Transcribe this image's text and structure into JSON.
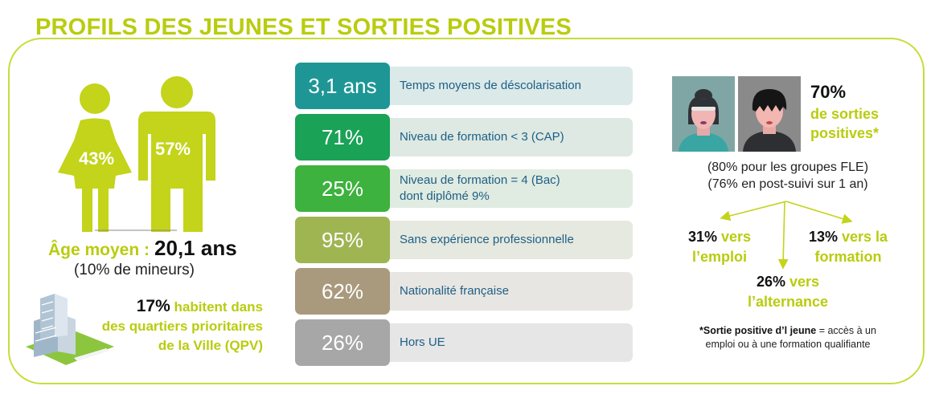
{
  "title": "PROFILS DES JEUNES ET SORTIES POSITIVES",
  "gender": {
    "women_pct": "43%",
    "men_pct": "57%"
  },
  "age": {
    "label": "Âge moyen :",
    "value": "20,1 ans",
    "minors": "(10% de mineurs)"
  },
  "qpv": {
    "pct": "17%",
    "line1": "habitent dans",
    "line2": "des quartiers prioritaires",
    "line3": "de la Ville (QPV)"
  },
  "stats": [
    {
      "value": "3,1 ans",
      "label": "Temps moyens de déscolarisation",
      "label2": "",
      "color": "#1e9696",
      "bg": "#dbe9e9"
    },
    {
      "value": "71%",
      "label": "Niveau de formation < 3 (CAP)",
      "label2": "",
      "color": "#1aa256",
      "bg": "#dde9e2"
    },
    {
      "value": "25%",
      "label": "Niveau de formation = 4 (Bac)",
      "label2": "dont diplômé 9%",
      "color": "#3db23e",
      "bg": "#e0ebe1"
    },
    {
      "value": "95%",
      "label": "Sans expérience professionnelle",
      "label2": "",
      "color": "#9fb552",
      "bg": "#e6e9df"
    },
    {
      "value": "62%",
      "label": "Nationalité française",
      "label2": "",
      "color": "#a99a7e",
      "bg": "#e8e6e2"
    },
    {
      "value": "26%",
      "label": "Hors UE",
      "label2": "",
      "color": "#a7a7a7",
      "bg": "#e6e6e6"
    }
  ],
  "outcomes": {
    "main_pct": "70%",
    "main_label_1": "de sorties",
    "main_label_2": "positives*",
    "fle_1": "(80% pour les groupes FLE)",
    "fle_2": "(76% en post-suivi sur 1 an)",
    "emploi_pct": "31%",
    "emploi_a": "vers",
    "emploi_b": "l’emploi",
    "formation_pct": "13%",
    "formation_a": "vers la",
    "formation_b": "formation",
    "alternance_pct": "26%",
    "alternance_a": "vers",
    "alternance_b": "l’alternance",
    "note_bold": "*Sortie positive d’l jeune",
    "note_rest": " = accès à un",
    "note_line2": "emploi ou à une formation qualifiante"
  }
}
